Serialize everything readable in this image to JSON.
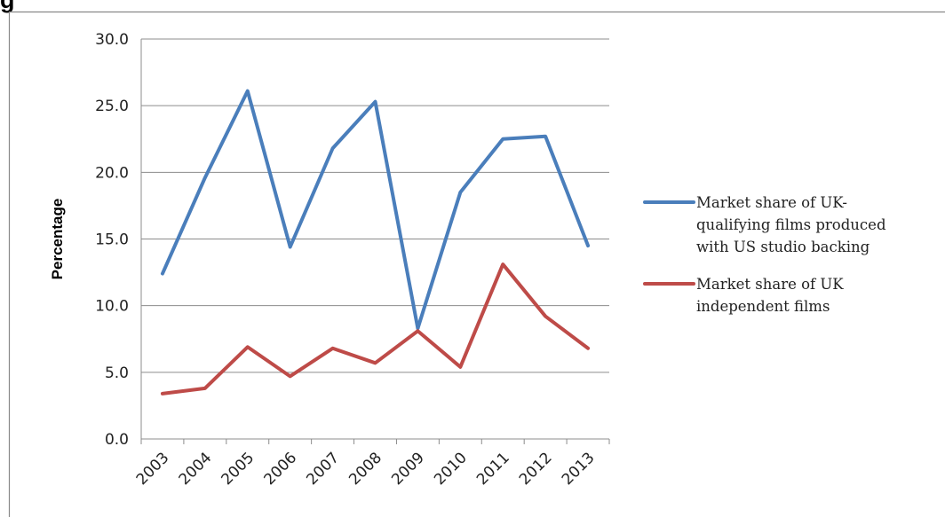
{
  "heading_fragment": "g",
  "chart_data": {
    "type": "line",
    "title": "",
    "xlabel": "",
    "ylabel": "Percentage",
    "ylim": [
      0,
      30
    ],
    "yticks": [
      "0.0",
      "5.0",
      "10.0",
      "15.0",
      "20.0",
      "25.0",
      "30.0"
    ],
    "categories": [
      "2003",
      "2004",
      "2005",
      "2006",
      "2007",
      "2008",
      "2009",
      "2010",
      "2011",
      "2012",
      "2013"
    ],
    "grid": "horizontal",
    "legend_position": "right",
    "series": [
      {
        "legend_lines": [
          "Market share of UK-",
          "qualifying films produced",
          "with US studio backing"
        ],
        "color": "#4a7ebb",
        "values": [
          12.4,
          19.6,
          26.1,
          14.4,
          21.8,
          25.3,
          8.3,
          18.5,
          22.5,
          22.7,
          14.5
        ]
      },
      {
        "legend_lines": [
          "Market share of UK",
          "independent films"
        ],
        "color": "#be4b48",
        "values": [
          3.4,
          3.8,
          6.9,
          4.7,
          6.8,
          5.7,
          8.1,
          5.4,
          13.1,
          9.2,
          6.8
        ]
      }
    ]
  }
}
